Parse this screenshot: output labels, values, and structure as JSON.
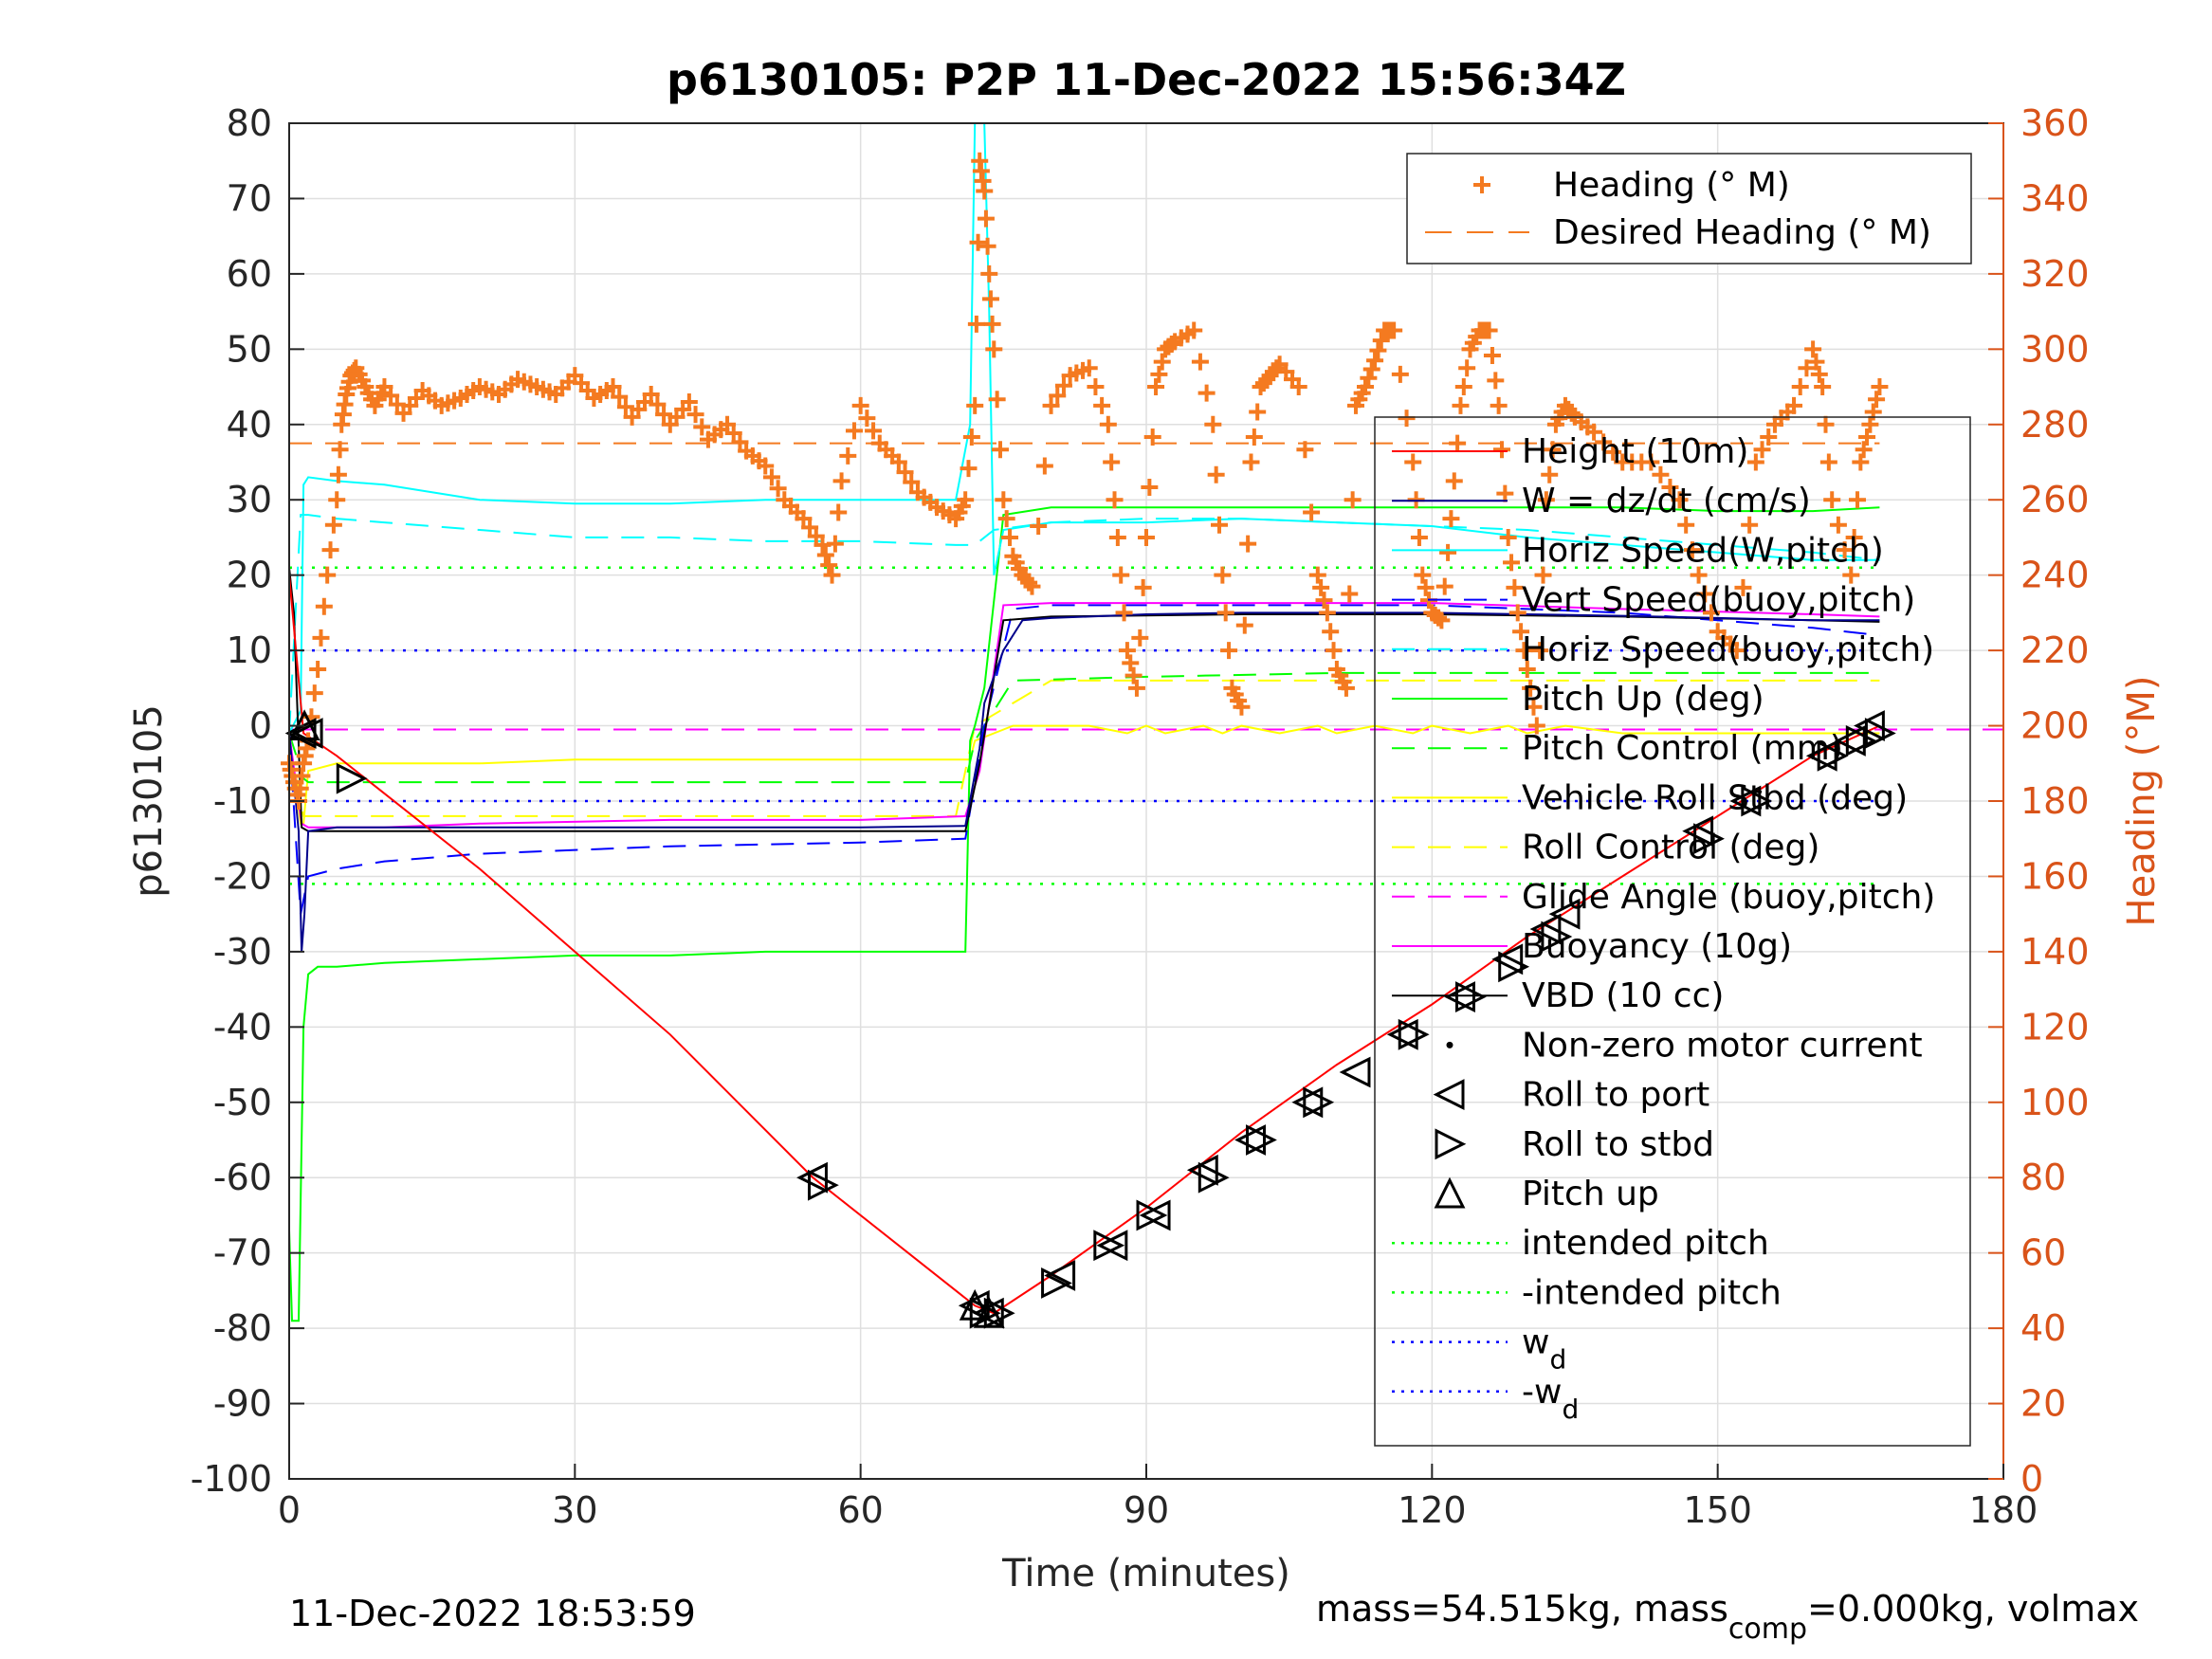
{
  "chart_data": {
    "type": "line",
    "title": "p6130105: P2P 11-Dec-2022 15:56:34Z",
    "xlabel": "Time (minutes)",
    "ylabel_left": "p6130105",
    "ylabel_right": "Heading (°M)",
    "xlim": [
      0,
      180
    ],
    "ylim_left": [
      -100,
      80
    ],
    "ylim_right": [
      0,
      360
    ],
    "x_ticks": [
      "0",
      "30",
      "60",
      "90",
      "120",
      "150",
      "180"
    ],
    "y_ticks_left": [
      "80",
      "70",
      "60",
      "50",
      "40",
      "30",
      "20",
      "10",
      "0",
      "-10",
      "-20",
      "-30",
      "-40",
      "-50",
      "-60",
      "-70",
      "-80",
      "-90",
      "-100"
    ],
    "y_ticks_right": [
      "360",
      "340",
      "320",
      "300",
      "280",
      "260",
      "240",
      "220",
      "200",
      "180",
      "160",
      "140",
      "120",
      "100",
      "80",
      "60",
      "40",
      "20",
      "0"
    ],
    "grid": true,
    "colors": {
      "height": "#ff0000",
      "w": "#00008b",
      "horiz_speed_w": "#00ffff",
      "vert_speed_buoy": "#0000ff",
      "horiz_speed_buoy": "#00ffff",
      "pitch": "#00ff00",
      "pitch_control": "#00ff00",
      "roll": "#ffff00",
      "roll_control": "#ffff00",
      "glide_angle": "#ff00ff",
      "buoyancy": "#ff00ff",
      "vbd": "#000000",
      "heading": "#f47a20",
      "intended_pitch": "#00ff00",
      "wd": "#0000ff"
    },
    "legend_heading": [
      {
        "label": "Heading (° M)",
        "style": "plus"
      },
      {
        "label": "Desired Heading (° M)",
        "style": "dashed"
      }
    ],
    "legend_main": [
      {
        "label": "Height (10m)",
        "style": "line",
        "color": "#ff0000"
      },
      {
        "label": "W = dz/dt (cm/s)",
        "style": "line",
        "color": "#00008b"
      },
      {
        "label": "Horiz Speed(W,pitch)",
        "style": "line",
        "color": "#00ffff"
      },
      {
        "label": "Vert Speed(buoy,pitch)",
        "style": "dashed",
        "color": "#0000ff"
      },
      {
        "label": "Horiz Speed(buoy,pitch)",
        "style": "dashed",
        "color": "#00ffff"
      },
      {
        "label": "Pitch Up (deg)",
        "style": "line",
        "color": "#00ff00"
      },
      {
        "label": "Pitch Control (mm)",
        "style": "dashed",
        "color": "#00ff00"
      },
      {
        "label": "Vehicle Roll Stbd (deg)",
        "style": "line",
        "color": "#ffff00"
      },
      {
        "label": "Roll Control (deg)",
        "style": "dashed",
        "color": "#ffff00"
      },
      {
        "label": "Glide Angle (buoy,pitch)",
        "style": "dashed",
        "color": "#ff00ff"
      },
      {
        "label": "Buoyancy (10g)",
        "style": "line",
        "color": "#ff00ff"
      },
      {
        "label": "VBD (10 cc)",
        "style": "line",
        "color": "#000000"
      },
      {
        "label": "Non-zero motor current",
        "style": "dot",
        "color": "#000000"
      },
      {
        "label": "Roll to port",
        "style": "tri-left",
        "color": "#000000"
      },
      {
        "label": "Roll to stbd",
        "style": "tri-right",
        "color": "#000000"
      },
      {
        "label": "Pitch up",
        "style": "tri-up",
        "color": "#000000"
      },
      {
        "label": "intended pitch",
        "style": "dotted",
        "color": "#00ff00"
      },
      {
        "label": "-intended pitch",
        "style": "dotted",
        "color": "#00ff00"
      },
      {
        "label": "w",
        "sub": "d",
        "style": "dotted",
        "color": "#0000ff"
      },
      {
        "label": "-w",
        "sub": "d",
        "style": "dotted",
        "color": "#0000ff"
      }
    ],
    "series": [
      {
        "key": "height",
        "axis": "left",
        "x": [
          0,
          1.5,
          5,
          20,
          40,
          55,
          72,
          74,
          80,
          90,
          100,
          110,
          120,
          130,
          140,
          150,
          160,
          167
        ],
        "y": [
          20,
          -1,
          -4,
          -19,
          -41,
          -60,
          -77,
          -78,
          -73,
          -64,
          -54,
          -45,
          -37,
          -28,
          -20,
          -12,
          -4,
          0
        ]
      },
      {
        "key": "w",
        "axis": "left",
        "x": [
          0,
          1,
          1.3,
          1.6,
          2,
          5,
          20,
          40,
          60,
          71,
          72.5,
          73,
          75,
          77,
          80,
          90,
          100,
          110,
          120,
          130,
          140,
          150,
          160,
          167
        ],
        "y": [
          -1,
          -14,
          -30,
          -25,
          -14,
          -13.5,
          -13.5,
          -13.5,
          -13.5,
          -13.3,
          -3,
          3,
          10,
          14,
          14.3,
          14.8,
          15,
          15,
          15,
          14.8,
          14.6,
          14.3,
          14.0,
          14.0
        ]
      },
      {
        "key": "horiz_speed_w",
        "axis": "left",
        "x": [
          0,
          1.2,
          1.5,
          2,
          5,
          10,
          20,
          30,
          40,
          50,
          60,
          70,
          71.5,
          72,
          72.5,
          73,
          73.5,
          74,
          75,
          80,
          90,
          100,
          110,
          120,
          130,
          140,
          150,
          160,
          167
        ],
        "y": [
          -1,
          2,
          32,
          33,
          32.5,
          32,
          30,
          29.5,
          29.5,
          30,
          30,
          30,
          40,
          80,
          80,
          80,
          55,
          20,
          26,
          27,
          27,
          27.5,
          27,
          26.5,
          25,
          24,
          23,
          22,
          22
        ]
      },
      {
        "key": "vert_speed_buoy",
        "axis": "left",
        "x": [
          0,
          1.2,
          2,
          5,
          10,
          20,
          40,
          60,
          71,
          73,
          76,
          80,
          90,
          100,
          110,
          120,
          130,
          140,
          150,
          160,
          167
        ],
        "y": [
          -1,
          -25,
          -20,
          -19,
          -18,
          -17,
          -16,
          -15.5,
          -15,
          0,
          15.5,
          16,
          16,
          16,
          16,
          16,
          15.5,
          15,
          14,
          13,
          12
        ]
      },
      {
        "key": "horiz_speed_buoy",
        "axis": "left",
        "x": [
          0,
          1.2,
          2,
          5,
          10,
          20,
          30,
          40,
          50,
          60,
          70,
          71.5,
          72,
          74,
          80,
          90,
          100,
          110,
          120,
          130,
          140,
          150,
          160,
          167
        ],
        "y": [
          -1,
          28,
          28,
          27.5,
          27,
          26,
          25,
          25,
          24.5,
          24.5,
          24,
          24,
          24,
          26,
          27,
          27.5,
          27.5,
          27,
          26.5,
          26,
          25,
          24,
          23,
          22
        ]
      },
      {
        "key": "pitch",
        "axis": "left",
        "x": [
          0,
          0.3,
          0.6,
          1.0,
          1.5,
          2,
          3,
          5,
          10,
          20,
          30,
          40,
          50,
          60,
          70,
          71,
          71.5,
          72,
          73,
          75,
          80,
          90,
          100,
          110,
          120,
          130,
          140,
          150,
          160,
          167
        ],
        "y": [
          -67,
          -79,
          -79,
          -79,
          -40,
          -33,
          -32,
          -32,
          -31.5,
          -31,
          -30.5,
          -30.5,
          -30,
          -30,
          -30,
          -30,
          -2,
          0,
          5,
          28,
          29,
          29,
          29,
          29,
          29,
          29,
          29,
          28.5,
          28.5,
          29
        ]
      },
      {
        "key": "pitch_control",
        "axis": "left",
        "x": [
          0,
          1.5,
          2,
          20,
          40,
          60,
          71,
          72,
          76,
          90,
          110,
          130,
          150,
          167
        ],
        "y": [
          -1,
          -7,
          -7.5,
          -7.5,
          -7.5,
          -7.5,
          -7.5,
          -2,
          6,
          6.5,
          7,
          7,
          7,
          7
        ]
      },
      {
        "key": "roll",
        "axis": "left",
        "x": [
          0,
          1.2,
          1.5,
          2,
          5,
          10,
          20,
          30,
          40,
          50,
          60,
          70,
          71.5,
          72,
          74,
          76,
          80,
          84,
          88,
          90,
          92,
          96,
          98,
          100,
          104,
          108,
          110,
          114,
          118,
          120,
          124,
          128,
          130,
          134,
          140,
          150,
          160,
          167
        ],
        "y": [
          -2,
          -13,
          -13,
          -6,
          -5,
          -5,
          -5,
          -4.5,
          -4.5,
          -4.5,
          -4.5,
          -4.5,
          -4.5,
          -2,
          -1,
          0,
          0,
          0,
          -1,
          0,
          -1,
          0,
          -1,
          0,
          -1,
          0,
          -1,
          0,
          -1,
          0,
          -1,
          0,
          -1,
          0,
          -1,
          -1,
          -1,
          -1
        ]
      },
      {
        "key": "roll_control",
        "axis": "left",
        "x": [
          0,
          1.5,
          2,
          70,
          72,
          80,
          167
        ],
        "y": [
          -2,
          -12,
          -12,
          -12,
          0,
          6,
          6
        ]
      },
      {
        "key": "glide_angle",
        "axis": "left",
        "x": [
          0,
          180
        ],
        "y": [
          -0.5,
          -0.5
        ]
      },
      {
        "key": "buoyancy",
        "axis": "left",
        "x": [
          0,
          1.3,
          2,
          10,
          20,
          40,
          60,
          71,
          72.5,
          75,
          80,
          100,
          120,
          140,
          160,
          167
        ],
        "y": [
          -1,
          -13,
          -13.5,
          -13.5,
          -13,
          -12.5,
          -12.5,
          -12,
          -6,
          16,
          16.3,
          16.3,
          16.3,
          15.5,
          14.8,
          14.5
        ]
      },
      {
        "key": "vbd",
        "axis": "left",
        "x": [
          0,
          0.5,
          1.3,
          2,
          10,
          30,
          50,
          71,
          72.5,
          75,
          80,
          100,
          120,
          140,
          160,
          167
        ],
        "y": [
          21,
          15,
          -13.5,
          -14,
          -14,
          -14,
          -14,
          -14,
          -5,
          14,
          14.5,
          14.8,
          14.8,
          14.5,
          14.0,
          13.8
        ]
      },
      {
        "key": "heading",
        "axis": "right",
        "x": [
          0,
          0.5,
          1,
          1.5,
          2,
          3,
          4,
          5,
          5.5,
          6,
          6.5,
          7,
          8,
          9,
          10,
          12,
          14,
          16,
          18,
          20,
          22,
          24,
          26,
          28,
          30,
          32,
          34,
          36,
          38,
          40,
          42,
          44,
          46,
          48,
          50,
          52,
          54,
          56,
          57,
          58,
          60,
          62,
          64,
          66,
          68,
          70,
          71,
          72,
          72.5,
          73,
          73.5,
          74,
          75,
          76,
          77,
          78,
          80,
          82,
          84,
          86,
          87,
          88,
          89,
          90,
          91,
          92,
          93,
          95,
          97,
          98,
          99,
          100,
          101,
          102,
          103,
          104,
          106,
          108,
          109,
          110,
          111,
          112,
          113,
          114,
          115,
          116,
          118,
          119,
          120,
          121,
          122,
          123,
          124,
          125,
          126,
          127,
          128,
          129,
          130,
          131,
          132,
          133,
          134,
          135,
          137,
          140,
          143,
          146,
          148,
          150,
          152,
          154,
          156,
          158,
          160,
          161,
          162,
          164,
          165,
          166,
          167
        ],
        "y": [
          190,
          185,
          180,
          190,
          196,
          215,
          240,
          260,
          280,
          288,
          293,
          295,
          290,
          285,
          290,
          283,
          289,
          285,
          287,
          290,
          288,
          292,
          290,
          288,
          293,
          287,
          290,
          282,
          288,
          280,
          286,
          276,
          280,
          273,
          269,
          260,
          255,
          248,
          240,
          265,
          285,
          275,
          270,
          262,
          258,
          255,
          260,
          285,
          350,
          342,
          320,
          300,
          260,
          245,
          240,
          237,
          285,
          293,
          295,
          280,
          250,
          220,
          210,
          250,
          290,
          300,
          302,
          305,
          280,
          240,
          210,
          205,
          270,
          290,
          293,
          296,
          290,
          240,
          230,
          215,
          210,
          285,
          290,
          297,
          305,
          305,
          270,
          240,
          230,
          228,
          255,
          285,
          300,
          305,
          305,
          285,
          250,
          230,
          215,
          200,
          260,
          280,
          285,
          282,
          278,
          270,
          270,
          260,
          240,
          225,
          220,
          270,
          280,
          285,
          300,
          290,
          260,
          240,
          270,
          280,
          290
        ]
      },
      {
        "key": "desired_heading",
        "axis": "right",
        "x": [
          0,
          167
        ],
        "y": [
          275,
          275
        ]
      },
      {
        "key": "intended_pitch",
        "axis": "left",
        "x": [
          0,
          167
        ],
        "y": [
          21,
          21
        ]
      },
      {
        "key": "neg_intended_pitch",
        "axis": "left",
        "x": [
          0,
          167
        ],
        "y": [
          -21,
          -21
        ]
      },
      {
        "key": "wd",
        "axis": "left",
        "x": [
          0,
          167
        ],
        "y": [
          10,
          10
        ]
      },
      {
        "key": "neg_wd",
        "axis": "left",
        "x": [
          0,
          167
        ],
        "y": [
          -10,
          -10
        ]
      }
    ],
    "markers": {
      "roll_to_port": {
        "x": [
          1.3,
          2,
          55,
          72,
          73.5,
          81,
          86.5,
          91,
          96,
          101,
          107,
          112,
          117,
          123,
          128,
          132,
          134,
          148,
          153,
          161,
          164,
          166
        ],
        "y": [
          -1,
          -1,
          -60,
          -77,
          -78,
          -73,
          -69,
          -65,
          -59,
          -55,
          -50,
          -46,
          -41,
          -36,
          -31,
          -27,
          -25,
          -14,
          -10,
          -4,
          -2,
          0
        ]
      },
      "roll_to_stbd": {
        "x": [
          6.5,
          56,
          73,
          74.5,
          80.5,
          86,
          90.5,
          97,
          102,
          108,
          118,
          124,
          128.5,
          133,
          149,
          154,
          162,
          165,
          167
        ],
        "y": [
          -7,
          -61,
          -78,
          -78,
          -74,
          -69,
          -65,
          -60,
          -55,
          -50,
          -41,
          -36,
          -32,
          -28,
          -15,
          -10,
          -4,
          -2,
          -1
        ]
      },
      "pitch_up": {
        "x": [
          1.6,
          72,
          73.5
        ],
        "y": [
          0,
          -77,
          -78
        ]
      }
    },
    "footer_left": "11-Dec-2022 18:53:59",
    "footer_right_prefix": "mass=54.515kg, mass",
    "footer_right_sub": "comp",
    "footer_right_suffix": "=0.000kg, volmax"
  }
}
